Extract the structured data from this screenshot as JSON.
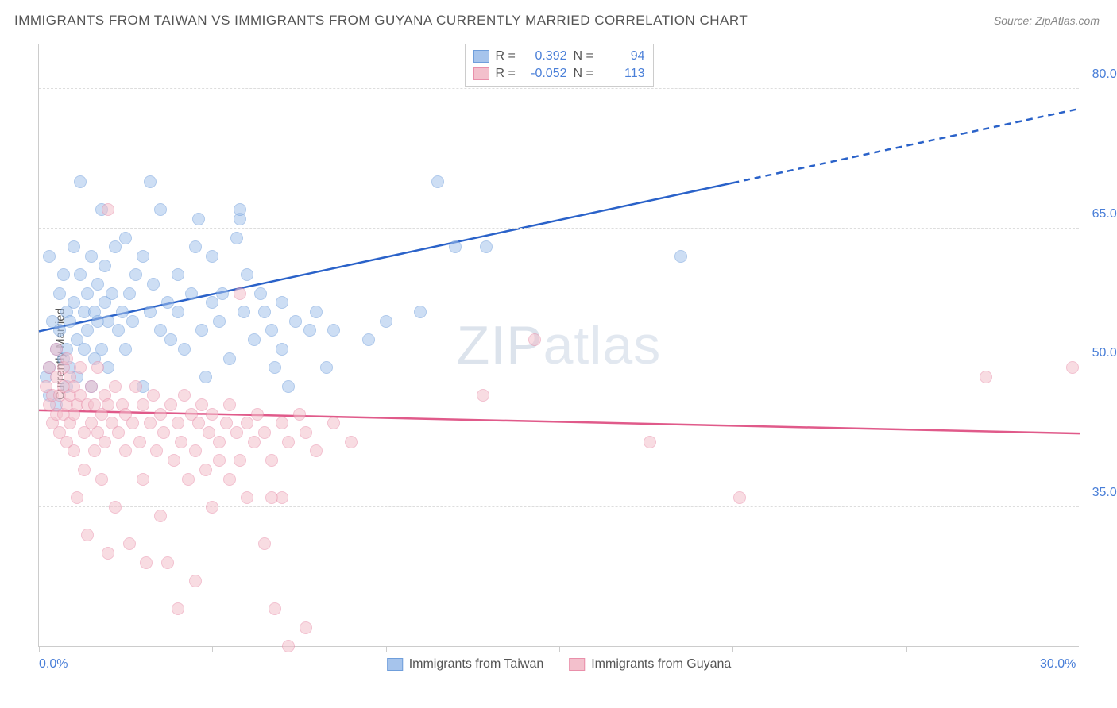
{
  "title": "IMMIGRANTS FROM TAIWAN VS IMMIGRANTS FROM GUYANA CURRENTLY MARRIED CORRELATION CHART",
  "source": "Source: ZipAtlas.com",
  "y_axis_label": "Currently Married",
  "watermark": {
    "bold": "ZIP",
    "light": "atlas"
  },
  "chart": {
    "type": "scatter",
    "xlim": [
      0,
      30
    ],
    "ylim": [
      20,
      85
    ],
    "x_ticks": [
      0,
      5,
      10,
      15,
      20,
      25,
      30
    ],
    "x_tick_labels": {
      "0": "0.0%",
      "30": "30.0%"
    },
    "y_gridlines": [
      35,
      50,
      65,
      80
    ],
    "y_tick_labels": {
      "35": "35.0%",
      "50": "50.0%",
      "65": "65.0%",
      "80": "80.0%"
    },
    "background_color": "#ffffff",
    "grid_color": "#dddddd",
    "axis_color": "#cccccc",
    "marker_radius": 8,
    "marker_opacity": 0.55
  },
  "series": [
    {
      "name": "Immigrants from Taiwan",
      "color_fill": "#a6c4ec",
      "color_stroke": "#6f9edb",
      "R": "0.392",
      "N": "94",
      "trend": {
        "x1": 0,
        "y1": 54,
        "x2_solid": 20,
        "y2_solid": 70,
        "x2": 30,
        "y2": 78,
        "stroke": "#2a62c9",
        "width": 2.5
      },
      "points": [
        [
          0.2,
          49
        ],
        [
          0.3,
          50
        ],
        [
          0.3,
          47
        ],
        [
          0.3,
          62
        ],
        [
          0.4,
          55
        ],
        [
          0.5,
          52
        ],
        [
          0.5,
          46
        ],
        [
          0.6,
          58
        ],
        [
          0.6,
          54
        ],
        [
          0.7,
          51
        ],
        [
          0.7,
          60
        ],
        [
          0.8,
          48
        ],
        [
          0.8,
          56
        ],
        [
          0.8,
          52
        ],
        [
          0.9,
          55
        ],
        [
          0.9,
          50
        ],
        [
          1.0,
          63
        ],
        [
          1.0,
          57
        ],
        [
          1.1,
          53
        ],
        [
          1.1,
          49
        ],
        [
          1.2,
          60
        ],
        [
          1.2,
          70
        ],
        [
          1.3,
          56
        ],
        [
          1.3,
          52
        ],
        [
          1.4,
          58
        ],
        [
          1.4,
          54
        ],
        [
          1.5,
          48
        ],
        [
          1.5,
          62
        ],
        [
          1.6,
          56
        ],
        [
          1.6,
          51
        ],
        [
          1.7,
          59
        ],
        [
          1.7,
          55
        ],
        [
          1.8,
          67
        ],
        [
          1.8,
          52
        ],
        [
          1.9,
          57
        ],
        [
          1.9,
          61
        ],
        [
          2.0,
          55
        ],
        [
          2.0,
          50
        ],
        [
          2.1,
          58
        ],
        [
          2.2,
          63
        ],
        [
          2.3,
          54
        ],
        [
          2.4,
          56
        ],
        [
          2.5,
          64
        ],
        [
          2.5,
          52
        ],
        [
          2.6,
          58
        ],
        [
          2.7,
          55
        ],
        [
          2.8,
          60
        ],
        [
          3.0,
          48
        ],
        [
          3.0,
          62
        ],
        [
          3.2,
          56
        ],
        [
          3.2,
          70
        ],
        [
          3.3,
          59
        ],
        [
          3.5,
          54
        ],
        [
          3.5,
          67
        ],
        [
          3.7,
          57
        ],
        [
          3.8,
          53
        ],
        [
          4.0,
          60
        ],
        [
          4.0,
          56
        ],
        [
          4.2,
          52
        ],
        [
          4.4,
          58
        ],
        [
          4.5,
          63
        ],
        [
          4.6,
          66
        ],
        [
          4.7,
          54
        ],
        [
          4.8,
          49
        ],
        [
          5.0,
          57
        ],
        [
          5.0,
          62
        ],
        [
          5.2,
          55
        ],
        [
          5.3,
          58
        ],
        [
          5.5,
          51
        ],
        [
          5.7,
          64
        ],
        [
          5.8,
          66
        ],
        [
          5.8,
          67
        ],
        [
          5.9,
          56
        ],
        [
          6.0,
          60
        ],
        [
          6.2,
          53
        ],
        [
          6.4,
          58
        ],
        [
          6.5,
          56
        ],
        [
          6.7,
          54
        ],
        [
          7.0,
          52
        ],
        [
          7.0,
          57
        ],
        [
          7.2,
          48
        ],
        [
          7.4,
          55
        ],
        [
          7.8,
          54
        ],
        [
          8.0,
          56
        ],
        [
          8.5,
          54
        ],
        [
          9.5,
          53
        ],
        [
          10.0,
          55
        ],
        [
          11.0,
          56
        ],
        [
          11.5,
          70
        ],
        [
          12.0,
          63
        ],
        [
          12.9,
          63
        ],
        [
          18.5,
          62
        ],
        [
          8.3,
          50
        ],
        [
          6.8,
          50
        ]
      ]
    },
    {
      "name": "Immigrants from Guyana",
      "color_fill": "#f3c0cc",
      "color_stroke": "#e98faa",
      "R": "-0.052",
      "N": "113",
      "trend": {
        "x1": 0,
        "y1": 45.5,
        "x2_solid": 30,
        "y2_solid": 43,
        "x2": 30,
        "y2": 43,
        "stroke": "#e05a8a",
        "width": 2.5
      },
      "points": [
        [
          0.2,
          48
        ],
        [
          0.3,
          46
        ],
        [
          0.3,
          50
        ],
        [
          0.4,
          47
        ],
        [
          0.4,
          44
        ],
        [
          0.5,
          49
        ],
        [
          0.5,
          45
        ],
        [
          0.5,
          52
        ],
        [
          0.6,
          47
        ],
        [
          0.6,
          43
        ],
        [
          0.7,
          48
        ],
        [
          0.7,
          50
        ],
        [
          0.7,
          45
        ],
        [
          0.8,
          46
        ],
        [
          0.8,
          42
        ],
        [
          0.8,
          51
        ],
        [
          0.9,
          47
        ],
        [
          0.9,
          44
        ],
        [
          0.9,
          49
        ],
        [
          1.0,
          45
        ],
        [
          1.0,
          41
        ],
        [
          1.0,
          48
        ],
        [
          1.1,
          46
        ],
        [
          1.1,
          36
        ],
        [
          1.2,
          47
        ],
        [
          1.2,
          50
        ],
        [
          1.3,
          43
        ],
        [
          1.3,
          39
        ],
        [
          1.4,
          46
        ],
        [
          1.4,
          32
        ],
        [
          1.5,
          48
        ],
        [
          1.5,
          44
        ],
        [
          1.6,
          41
        ],
        [
          1.6,
          46
        ],
        [
          1.7,
          43
        ],
        [
          1.7,
          50
        ],
        [
          1.8,
          45
        ],
        [
          1.8,
          38
        ],
        [
          1.9,
          47
        ],
        [
          1.9,
          42
        ],
        [
          2.0,
          46
        ],
        [
          2.0,
          30
        ],
        [
          2.0,
          67
        ],
        [
          2.1,
          44
        ],
        [
          2.2,
          48
        ],
        [
          2.2,
          35
        ],
        [
          2.3,
          43
        ],
        [
          2.4,
          46
        ],
        [
          2.5,
          41
        ],
        [
          2.5,
          45
        ],
        [
          2.6,
          31
        ],
        [
          2.7,
          44
        ],
        [
          2.8,
          48
        ],
        [
          2.9,
          42
        ],
        [
          3.0,
          46
        ],
        [
          3.0,
          38
        ],
        [
          3.1,
          29
        ],
        [
          3.2,
          44
        ],
        [
          3.3,
          47
        ],
        [
          3.4,
          41
        ],
        [
          3.5,
          34
        ],
        [
          3.5,
          45
        ],
        [
          3.6,
          43
        ],
        [
          3.7,
          29
        ],
        [
          3.8,
          46
        ],
        [
          3.9,
          40
        ],
        [
          4.0,
          44
        ],
        [
          4.0,
          24
        ],
        [
          4.1,
          42
        ],
        [
          4.2,
          47
        ],
        [
          4.3,
          38
        ],
        [
          4.4,
          45
        ],
        [
          4.5,
          41
        ],
        [
          4.5,
          27
        ],
        [
          4.6,
          44
        ],
        [
          4.7,
          46
        ],
        [
          4.8,
          39
        ],
        [
          4.9,
          43
        ],
        [
          5.0,
          45
        ],
        [
          5.0,
          35
        ],
        [
          5.2,
          42
        ],
        [
          5.2,
          40
        ],
        [
          5.4,
          44
        ],
        [
          5.5,
          46
        ],
        [
          5.5,
          38
        ],
        [
          5.7,
          43
        ],
        [
          5.8,
          40
        ],
        [
          5.8,
          58
        ],
        [
          6.0,
          44
        ],
        [
          6.0,
          36
        ],
        [
          6.2,
          42
        ],
        [
          6.3,
          45
        ],
        [
          6.5,
          31
        ],
        [
          6.5,
          43
        ],
        [
          6.7,
          40
        ],
        [
          6.7,
          36
        ],
        [
          6.8,
          24
        ],
        [
          7.0,
          44
        ],
        [
          7.0,
          36
        ],
        [
          7.2,
          42
        ],
        [
          7.2,
          20
        ],
        [
          7.5,
          45
        ],
        [
          7.7,
          43
        ],
        [
          7.7,
          22
        ],
        [
          8.0,
          41
        ],
        [
          8.5,
          44
        ],
        [
          12.8,
          47
        ],
        [
          14.3,
          53
        ],
        [
          17.6,
          42
        ],
        [
          20.2,
          36
        ],
        [
          27.3,
          49
        ],
        [
          29.8,
          50
        ],
        [
          9.0,
          42
        ]
      ]
    }
  ],
  "legend_bottom": [
    {
      "label": "Immigrants from Taiwan",
      "fill": "#a6c4ec",
      "stroke": "#6f9edb"
    },
    {
      "label": "Immigrants from Guyana",
      "fill": "#f3c0cc",
      "stroke": "#e98faa"
    }
  ]
}
